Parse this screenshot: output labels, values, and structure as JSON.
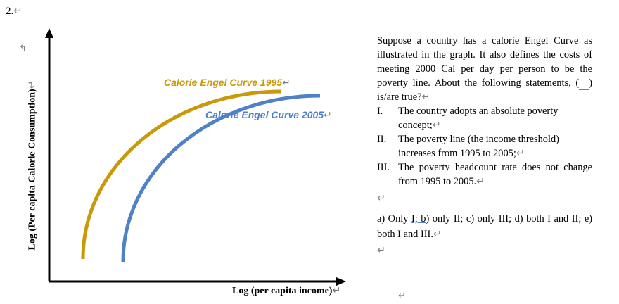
{
  "question_number": "2.",
  "graph": {
    "y_axis_label": "Log (Per capita Calorie Consumption)",
    "x_axis_label": "Log (per capita income)",
    "curve_1995_label": "Calorie Engel Curve 1995",
    "curve_2005_label": "Calorie Engel Curve 2005",
    "colors": {
      "curve_1995": "#c89a0a",
      "curve_2005": "#4f81c7",
      "axes": "#000000"
    }
  },
  "question": {
    "intro_before_blank": "Suppose a country has a calorie Engel Curve as illustrated in the graph. It also defines the costs of meeting 2000 Cal per day per person to be the poverty line. About the following statements, (",
    "intro_after_blank": ") is/are true?",
    "statements": [
      {
        "num": "I.",
        "text": "The country adopts an absolute poverty concept;"
      },
      {
        "num": "II.",
        "text": "The poverty line (the income threshold) increases from 1995 to 2005;"
      },
      {
        "num": "III.",
        "text": "The poverty headcount rate does not change from 1995 to 2005."
      }
    ],
    "options_part1": "a) Only ",
    "options_underlined": "I;  b",
    "options_part2": ") only II; c) only III; d) both I and II; e) both I and III."
  },
  "marks": {
    "return": "↵",
    "corner_arrow": "↰"
  }
}
